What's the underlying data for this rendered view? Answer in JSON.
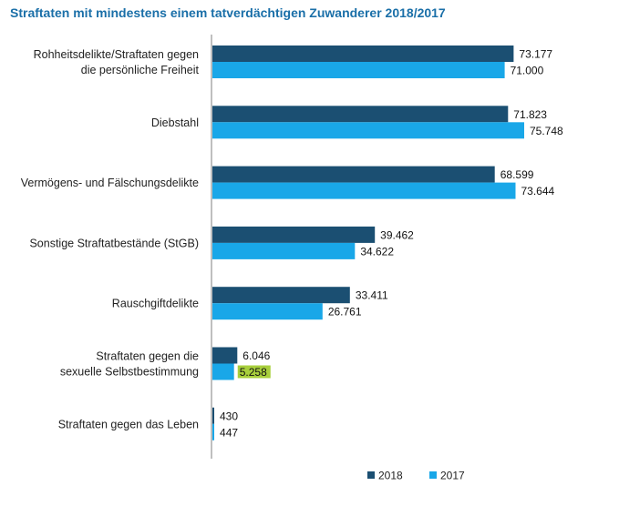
{
  "chart_data": {
    "type": "bar",
    "orientation": "horizontal",
    "title": "Straftaten mit mindestens einem tatverdächtigen Zuwanderer 2018/2017",
    "categories": [
      [
        "Rohheitsdelikte/Straftaten gegen",
        "die persönliche Freiheit"
      ],
      [
        "Diebstahl"
      ],
      [
        "Vermögens- und Fälschungsdelikte"
      ],
      [
        "Sonstige Straftatbestände (StGB)"
      ],
      [
        "Rauschgiftdelikte"
      ],
      [
        "Straftaten gegen die",
        "sexuelle Selbstbestimmung"
      ],
      [
        "Straftaten gegen das Leben"
      ]
    ],
    "series": [
      {
        "name": "2018",
        "color": "#1b4f72",
        "values": [
          73177,
          71823,
          68599,
          39462,
          33411,
          6046,
          430
        ],
        "labels": [
          "73.177",
          "71.823",
          "68.599",
          "39.462",
          "33.411",
          "6.046",
          "430"
        ]
      },
      {
        "name": "2017",
        "color": "#19a7e8",
        "values": [
          71000,
          75748,
          73644,
          34622,
          26761,
          5258,
          447
        ],
        "labels": [
          "71.000",
          "75.748",
          "73.644",
          "34.622",
          "26.761",
          "5.258",
          "447"
        ]
      }
    ],
    "highlight": {
      "series": 1,
      "index": 5,
      "color": "#a8cf3c"
    },
    "xlim": [
      0,
      80000
    ],
    "grid": false,
    "legend": "bottom-right"
  }
}
